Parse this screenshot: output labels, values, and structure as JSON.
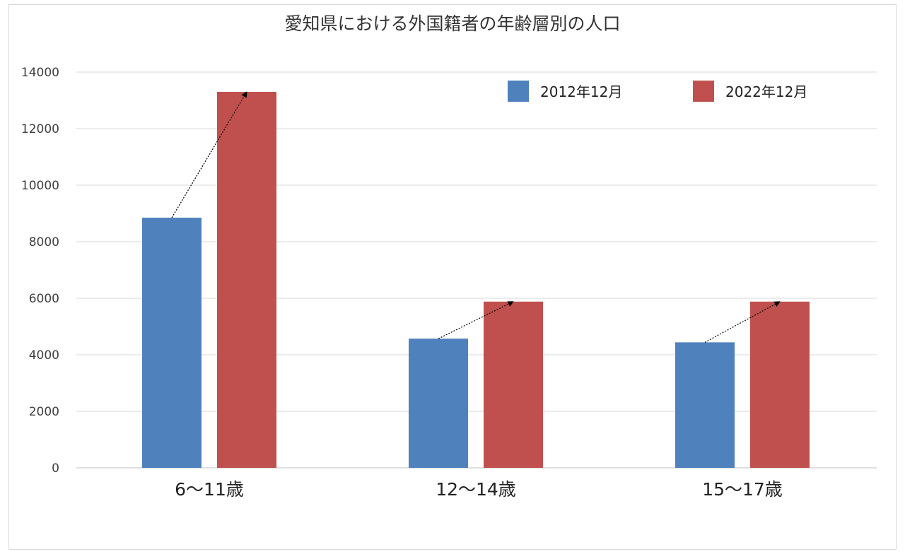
{
  "chart_data": {
    "type": "bar",
    "title": "愛知県における外国籍者の年齢層別の人口",
    "categories": [
      "6〜11歳",
      "12〜14歳",
      "15〜17歳"
    ],
    "series": [
      {
        "name": "2012年12月",
        "color": "#4f81bd",
        "values": [
          8850,
          4570,
          4440
        ]
      },
      {
        "name": "2022年12月",
        "color": "#c0504d",
        "values": [
          13300,
          5880,
          5880
        ]
      }
    ],
    "ylim": [
      0,
      14000
    ],
    "yticks": [
      0,
      2000,
      4000,
      6000,
      8000,
      10000,
      12000,
      14000
    ],
    "grid": true,
    "legend_position": "top-right",
    "annotations": "dotted arrows from each 2012 bar top to the matching 2022 bar top"
  }
}
